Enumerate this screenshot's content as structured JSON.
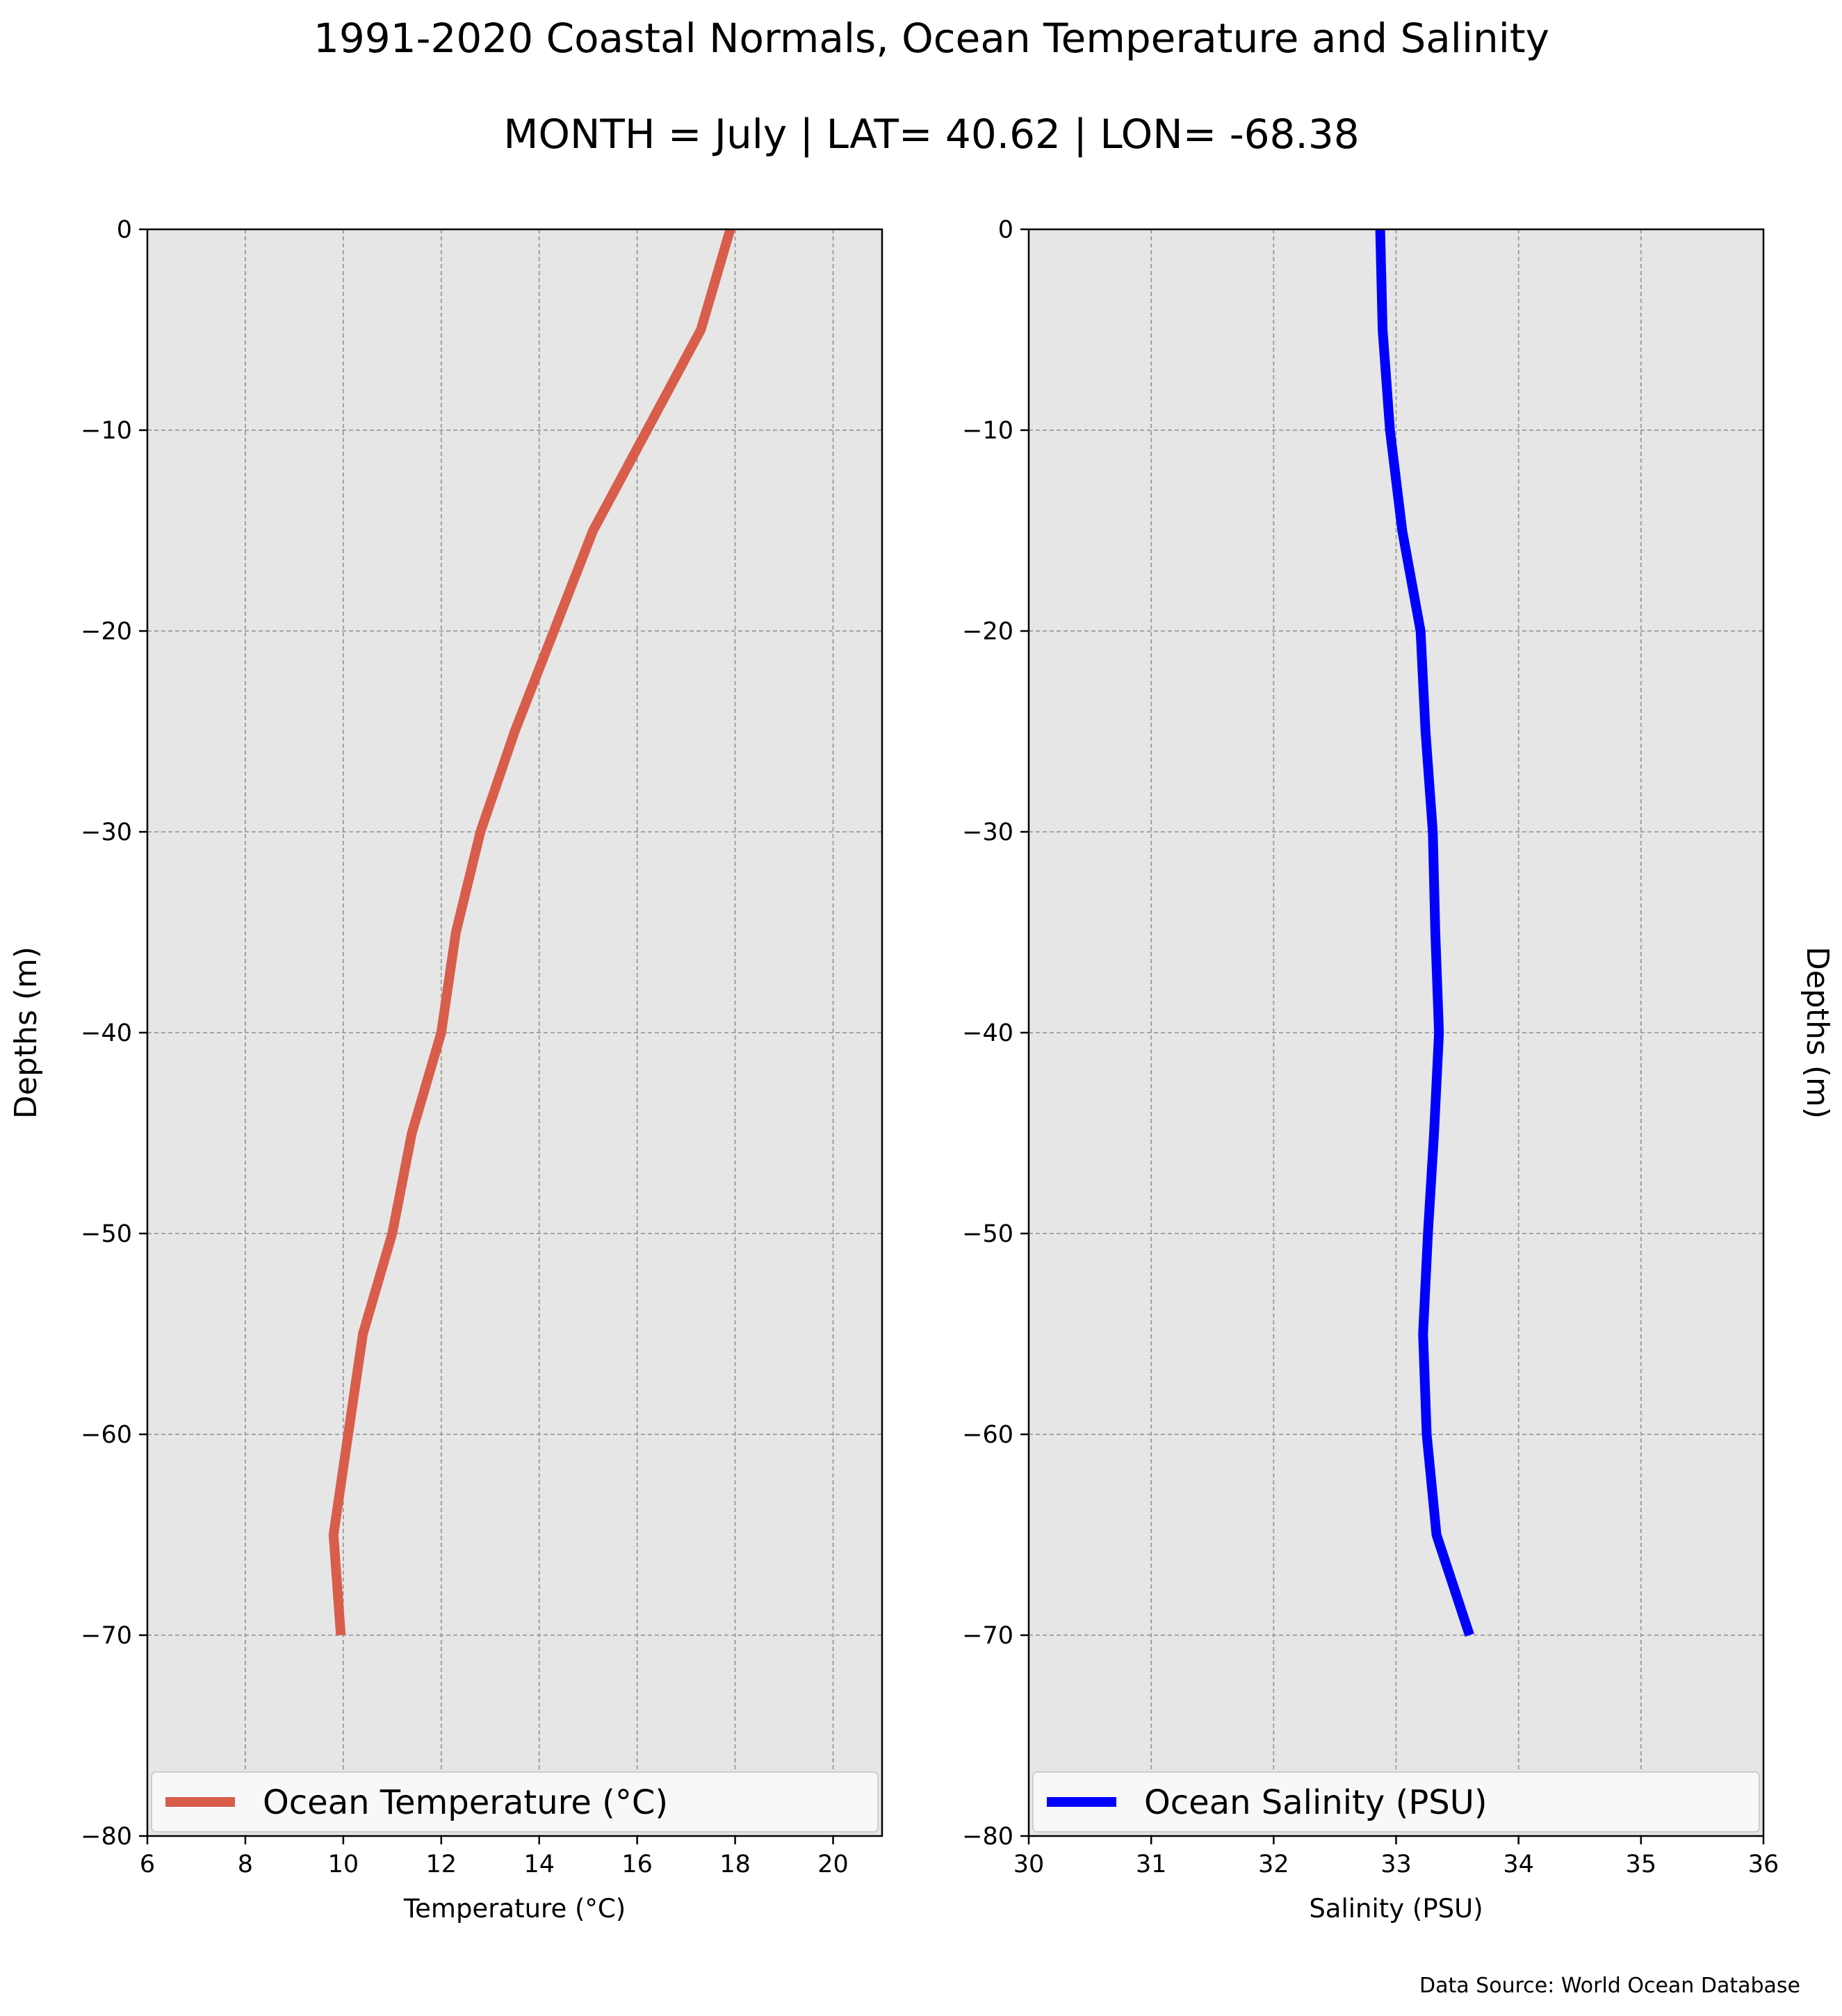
{
  "figure": {
    "title": "1991-2020 Coastal Normals, Ocean Temperature and Salinity",
    "subtitle": "MONTH = July | LAT= 40.62 | LON= -68.38",
    "source": "Data Source: World Ocean Database",
    "background": "#e6e6e6"
  },
  "chart_data": [
    {
      "type": "line",
      "orientation": "vertical-profile",
      "xlabel": "Temperature ($^\\circ$C)",
      "xlabel_display": "Temperature (°C)",
      "ylabel": "Depths (m)",
      "xlim": [
        6,
        21
      ],
      "ylim": [
        -80,
        0
      ],
      "xticks": [
        6,
        8,
        10,
        12,
        14,
        16,
        18,
        20
      ],
      "yticks": [
        0,
        -10,
        -20,
        -30,
        -40,
        -50,
        -60,
        -70,
        -80
      ],
      "grid": true,
      "legend_position": "lower center",
      "series": [
        {
          "name": "Ocean Temperature (°C)",
          "color": "#d95d4b",
          "depth": [
            0,
            -5,
            -10,
            -15,
            -20,
            -25,
            -30,
            -35,
            -40,
            -45,
            -50,
            -55,
            -60,
            -65,
            -70
          ],
          "values": [
            17.9,
            17.3,
            16.2,
            15.1,
            14.3,
            13.5,
            12.8,
            12.3,
            12.0,
            11.4,
            11.0,
            10.4,
            10.1,
            9.8,
            9.95
          ]
        }
      ]
    },
    {
      "type": "line",
      "orientation": "vertical-profile",
      "xlabel": "Salinity (PSU)",
      "ylabel": "Depths (m)",
      "xlim": [
        30,
        36
      ],
      "ylim": [
        -80,
        0
      ],
      "xticks": [
        30,
        31,
        32,
        33,
        34,
        35,
        36
      ],
      "yticks": [
        0,
        -10,
        -20,
        -30,
        -40,
        -50,
        -60,
        -70,
        -80
      ],
      "grid": true,
      "legend_position": "lower center",
      "series": [
        {
          "name": "Ocean Salinity (PSU)",
          "color": "#0000ff",
          "depth": [
            0,
            -5,
            -10,
            -15,
            -20,
            -25,
            -30,
            -35,
            -40,
            -45,
            -50,
            -55,
            -60,
            -65,
            -70
          ],
          "values": [
            32.87,
            32.89,
            32.95,
            33.05,
            33.2,
            33.24,
            33.3,
            33.32,
            33.35,
            33.31,
            33.26,
            33.22,
            33.25,
            33.33,
            33.6
          ]
        }
      ]
    }
  ]
}
